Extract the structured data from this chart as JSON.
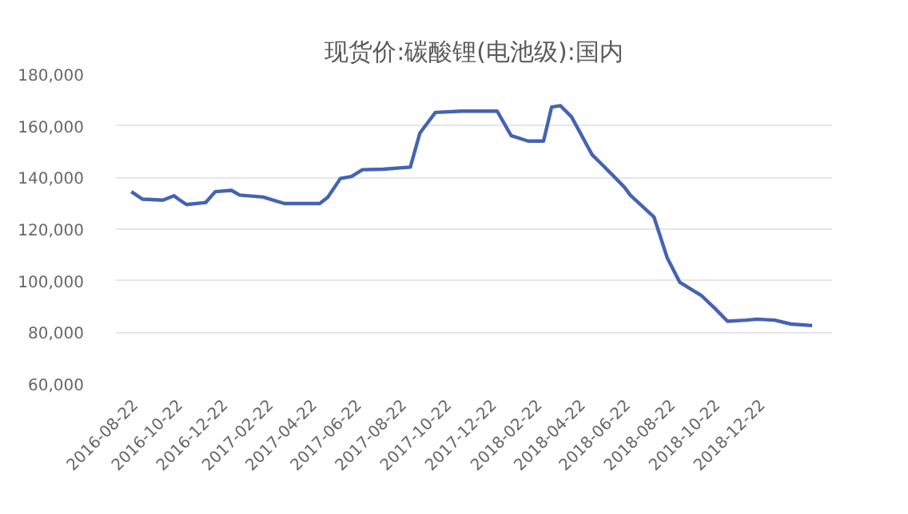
{
  "chart_data": {
    "type": "line",
    "title": "现货价:碳酸锂(电池级):国内",
    "x": [
      "2016-08-18",
      "2016-09-02",
      "2016-09-30",
      "2016-10-15",
      "2016-10-21",
      "2016-11-01",
      "2016-11-27",
      "2016-12-10",
      "2017-01-01",
      "2017-01-12",
      "2017-02-13",
      "2017-03-14",
      "2017-05-01",
      "2017-05-12",
      "2017-05-29",
      "2017-06-13",
      "2017-06-28",
      "2017-07-26",
      "2017-09-01",
      "2017-09-14",
      "2017-10-05",
      "2017-11-10",
      "2017-12-28",
      "2018-01-16",
      "2018-02-08",
      "2018-03-01",
      "2018-03-12",
      "2018-03-24",
      "2018-04-08",
      "2018-05-06",
      "2018-05-21",
      "2018-06-19",
      "2018-06-27",
      "2018-07-29",
      "2018-08-16",
      "2018-09-02",
      "2018-10-02",
      "2018-10-19",
      "2018-11-06",
      "2018-12-01",
      "2018-12-16",
      "2019-01-09",
      "2019-01-31",
      "2019-03-01"
    ],
    "series": [
      {
        "color": "#4563b0",
        "values": [
          134500,
          131600,
          131200,
          132900,
          131600,
          129500,
          130300,
          134500,
          135000,
          133200,
          132400,
          129900,
          129900,
          132400,
          139600,
          140400,
          143000,
          143200,
          144000,
          157200,
          165200,
          165700,
          165700,
          156200,
          154100,
          154100,
          167300,
          167800,
          163500,
          148800,
          144600,
          136200,
          133100,
          124700,
          108900,
          99400,
          94100,
          89500,
          84300,
          84700,
          85100,
          84700,
          83200,
          82600
        ]
      }
    ],
    "xlim": [
      "2016-07-28",
      "2019-03-28"
    ],
    "xticks": [
      "2016-08-22",
      "2016-10-22",
      "2016-12-22",
      "2017-02-22",
      "2017-04-22",
      "2017-06-22",
      "2017-08-22",
      "2017-10-22",
      "2017-12-22",
      "2018-02-22",
      "2018-04-22",
      "2018-06-22",
      "2018-08-22",
      "2018-10-22",
      "2018-12-22"
    ],
    "ylim": [
      60000,
      180000
    ],
    "yticks": [
      {
        "value": 60000,
        "label": "60,000"
      },
      {
        "value": 80000,
        "label": "80,000"
      },
      {
        "value": 100000,
        "label": "100,000"
      },
      {
        "value": 120000,
        "label": "120,000"
      },
      {
        "value": 140000,
        "label": "140,000"
      },
      {
        "value": 160000,
        "label": "160,000"
      },
      {
        "value": 180000,
        "label": "180,000"
      }
    ],
    "grid": "y",
    "marker": "none",
    "line_style": "solid"
  }
}
